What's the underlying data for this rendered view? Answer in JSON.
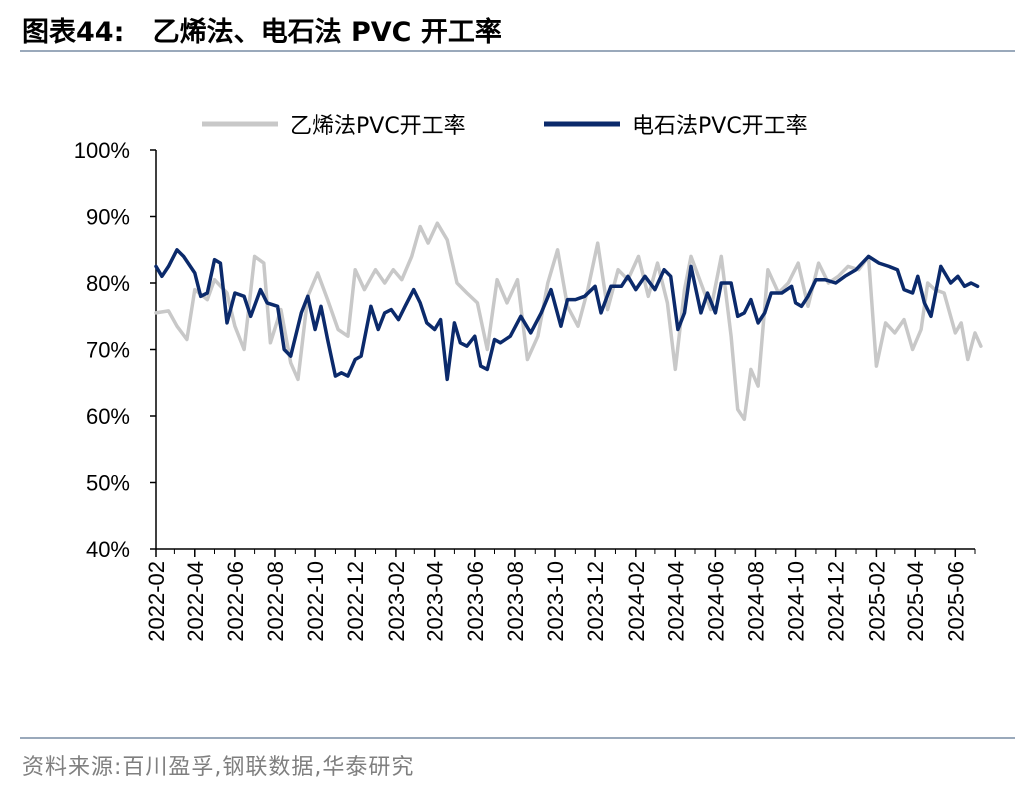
{
  "header": {
    "title": "图表44:   乙烯法、电石法 PVC 开工率"
  },
  "footer": {
    "source": "资料来源:百川盈孚,钢联数据,华泰研究"
  },
  "colors": {
    "ethylene": "#c8c8c8",
    "carbide": "#0b2a6b",
    "rule": "#9aa9bb"
  },
  "chart_data": {
    "type": "line",
    "title": "",
    "xlabel": "",
    "ylabel": "",
    "ylim": [
      40,
      100
    ],
    "y_ticks": [
      "40%",
      "50%",
      "60%",
      "70%",
      "80%",
      "90%",
      "100%"
    ],
    "x_range": [
      "2022-02",
      "2025-07"
    ],
    "x_ticks": [
      "2022-02",
      "2022-04",
      "2022-06",
      "2022-08",
      "2022-10",
      "2022-12",
      "2023-02",
      "2023-04",
      "2023-06",
      "2023-08",
      "2023-10",
      "2023-12",
      "2024-02",
      "2024-04",
      "2024-06",
      "2024-08",
      "2024-10",
      "2024-12",
      "2025-02",
      "2025-04",
      "2025-06"
    ],
    "legend": "top",
    "grid": false,
    "series": [
      {
        "name": "乙烯法PVC开工率",
        "color": "#c8c8c8",
        "points": [
          [
            "2022-02-01",
            75.5
          ],
          [
            "2022-02-20",
            75.8
          ],
          [
            "2022-03-05",
            73.5
          ],
          [
            "2022-03-20",
            71.5
          ],
          [
            "2022-04-01",
            79.0
          ],
          [
            "2022-04-20",
            77.5
          ],
          [
            "2022-05-01",
            80.5
          ],
          [
            "2022-05-20",
            78.5
          ],
          [
            "2022-06-01",
            73.5
          ],
          [
            "2022-06-15",
            70.0
          ],
          [
            "2022-07-01",
            84.0
          ],
          [
            "2022-07-15",
            83.0
          ],
          [
            "2022-07-25",
            71.0
          ],
          [
            "2022-08-10",
            76.0
          ],
          [
            "2022-08-25",
            68.0
          ],
          [
            "2022-09-05",
            65.5
          ],
          [
            "2022-09-20",
            78.0
          ],
          [
            "2022-10-05",
            81.5
          ],
          [
            "2022-10-20",
            77.5
          ],
          [
            "2022-11-05",
            73.0
          ],
          [
            "2022-11-20",
            72.0
          ],
          [
            "2022-12-01",
            82.0
          ],
          [
            "2022-12-15",
            79.0
          ],
          [
            "2023-01-01",
            82.0
          ],
          [
            "2023-01-15",
            80.0
          ],
          [
            "2023-01-28",
            82.0
          ],
          [
            "2023-02-10",
            80.5
          ],
          [
            "2023-02-25",
            84.0
          ],
          [
            "2023-03-10",
            88.5
          ],
          [
            "2023-03-22",
            86.0
          ],
          [
            "2023-04-05",
            89.0
          ],
          [
            "2023-04-20",
            86.5
          ],
          [
            "2023-05-05",
            80.0
          ],
          [
            "2023-05-20",
            78.5
          ],
          [
            "2023-06-05",
            77.0
          ],
          [
            "2023-06-20",
            70.0
          ],
          [
            "2023-07-05",
            80.5
          ],
          [
            "2023-07-20",
            77.0
          ],
          [
            "2023-08-05",
            80.5
          ],
          [
            "2023-08-20",
            68.5
          ],
          [
            "2023-09-05",
            72.0
          ],
          [
            "2023-09-20",
            80.0
          ],
          [
            "2023-10-05",
            85.0
          ],
          [
            "2023-10-20",
            76.5
          ],
          [
            "2023-11-05",
            73.5
          ],
          [
            "2023-11-20",
            79.0
          ],
          [
            "2023-12-05",
            86.0
          ],
          [
            "2023-12-20",
            76.0
          ],
          [
            "2024-01-05",
            82.0
          ],
          [
            "2024-01-20",
            80.5
          ],
          [
            "2024-02-05",
            84.0
          ],
          [
            "2024-02-20",
            78.0
          ],
          [
            "2024-03-05",
            83.0
          ],
          [
            "2024-03-20",
            77.0
          ],
          [
            "2024-04-01",
            67.0
          ],
          [
            "2024-04-15",
            79.0
          ],
          [
            "2024-04-25",
            84.0
          ],
          [
            "2024-05-10",
            80.0
          ],
          [
            "2024-05-25",
            76.0
          ],
          [
            "2024-06-10",
            84.0
          ],
          [
            "2024-06-25",
            72.0
          ],
          [
            "2024-07-05",
            61.0
          ],
          [
            "2024-07-15",
            59.5
          ],
          [
            "2024-07-25",
            67.0
          ],
          [
            "2024-08-05",
            64.5
          ],
          [
            "2024-08-20",
            82.0
          ],
          [
            "2024-09-05",
            78.5
          ],
          [
            "2024-09-20",
            80.0
          ],
          [
            "2024-10-05",
            83.0
          ],
          [
            "2024-10-20",
            76.5
          ],
          [
            "2024-11-05",
            83.0
          ],
          [
            "2024-11-20",
            80.0
          ],
          [
            "2024-12-05",
            81.0
          ],
          [
            "2024-12-20",
            82.5
          ],
          [
            "2025-01-05",
            82.0
          ],
          [
            "2025-01-20",
            84.0
          ],
          [
            "2025-02-01",
            67.5
          ],
          [
            "2025-02-15",
            74.0
          ],
          [
            "2025-03-01",
            72.5
          ],
          [
            "2025-03-15",
            74.5
          ],
          [
            "2025-03-28",
            70.0
          ],
          [
            "2025-04-10",
            73.0
          ],
          [
            "2025-04-20",
            80.0
          ],
          [
            "2025-05-01",
            79.0
          ],
          [
            "2025-05-15",
            78.5
          ],
          [
            "2025-06-01",
            72.5
          ],
          [
            "2025-06-10",
            74.0
          ],
          [
            "2025-06-20",
            68.5
          ],
          [
            "2025-07-01",
            72.5
          ],
          [
            "2025-07-10",
            70.5
          ]
        ]
      },
      {
        "name": "电石法PVC开工率",
        "color": "#0b2a6b",
        "points": [
          [
            "2022-02-01",
            82.5
          ],
          [
            "2022-02-10",
            81.0
          ],
          [
            "2022-02-20",
            82.5
          ],
          [
            "2022-03-05",
            85.0
          ],
          [
            "2022-03-15",
            84.0
          ],
          [
            "2022-04-01",
            81.5
          ],
          [
            "2022-04-10",
            78.0
          ],
          [
            "2022-04-20",
            78.5
          ],
          [
            "2022-05-01",
            83.5
          ],
          [
            "2022-05-10",
            83.0
          ],
          [
            "2022-05-20",
            74.0
          ],
          [
            "2022-06-01",
            78.5
          ],
          [
            "2022-06-15",
            78.0
          ],
          [
            "2022-06-25",
            75.0
          ],
          [
            "2022-07-10",
            79.0
          ],
          [
            "2022-07-20",
            77.0
          ],
          [
            "2022-08-05",
            76.5
          ],
          [
            "2022-08-15",
            70.0
          ],
          [
            "2022-08-25",
            69.0
          ],
          [
            "2022-09-10",
            75.5
          ],
          [
            "2022-09-20",
            78.0
          ],
          [
            "2022-10-01",
            73.0
          ],
          [
            "2022-10-10",
            76.5
          ],
          [
            "2022-10-20",
            71.5
          ],
          [
            "2022-11-01",
            66.0
          ],
          [
            "2022-11-10",
            66.5
          ],
          [
            "2022-11-20",
            66.0
          ],
          [
            "2022-12-01",
            68.5
          ],
          [
            "2022-12-10",
            69.0
          ],
          [
            "2022-12-25",
            76.5
          ],
          [
            "2023-01-05",
            73.0
          ],
          [
            "2023-01-15",
            75.5
          ],
          [
            "2023-01-25",
            76.0
          ],
          [
            "2023-02-05",
            74.5
          ],
          [
            "2023-02-15",
            76.5
          ],
          [
            "2023-02-28",
            79.0
          ],
          [
            "2023-03-10",
            77.0
          ],
          [
            "2023-03-20",
            74.0
          ],
          [
            "2023-04-01",
            73.0
          ],
          [
            "2023-04-10",
            74.5
          ],
          [
            "2023-04-20",
            65.5
          ],
          [
            "2023-05-01",
            74.0
          ],
          [
            "2023-05-10",
            71.0
          ],
          [
            "2023-05-20",
            70.5
          ],
          [
            "2023-06-01",
            72.0
          ],
          [
            "2023-06-10",
            67.5
          ],
          [
            "2023-06-20",
            67.0
          ],
          [
            "2023-07-01",
            71.5
          ],
          [
            "2023-07-10",
            71.0
          ],
          [
            "2023-07-25",
            72.0
          ],
          [
            "2023-08-10",
            75.0
          ],
          [
            "2023-08-25",
            72.5
          ],
          [
            "2023-09-10",
            75.5
          ],
          [
            "2023-09-25",
            79.0
          ],
          [
            "2023-10-10",
            73.5
          ],
          [
            "2023-10-20",
            77.5
          ],
          [
            "2023-11-01",
            77.5
          ],
          [
            "2023-11-15",
            78.0
          ],
          [
            "2023-12-01",
            79.5
          ],
          [
            "2023-12-10",
            75.5
          ],
          [
            "2023-12-25",
            79.5
          ],
          [
            "2024-01-10",
            79.5
          ],
          [
            "2024-01-20",
            81.0
          ],
          [
            "2024-02-01",
            79.0
          ],
          [
            "2024-02-15",
            81.0
          ],
          [
            "2024-03-01",
            79.0
          ],
          [
            "2024-03-15",
            82.0
          ],
          [
            "2024-03-25",
            81.0
          ],
          [
            "2024-04-05",
            73.0
          ],
          [
            "2024-04-15",
            75.5
          ],
          [
            "2024-04-25",
            82.5
          ],
          [
            "2024-05-10",
            75.5
          ],
          [
            "2024-05-20",
            78.5
          ],
          [
            "2024-06-01",
            75.5
          ],
          [
            "2024-06-10",
            80.0
          ],
          [
            "2024-06-25",
            80.0
          ],
          [
            "2024-07-05",
            75.0
          ],
          [
            "2024-07-15",
            75.5
          ],
          [
            "2024-07-25",
            77.5
          ],
          [
            "2024-08-05",
            74.0
          ],
          [
            "2024-08-15",
            75.5
          ],
          [
            "2024-08-25",
            78.5
          ],
          [
            "2024-09-10",
            78.5
          ],
          [
            "2024-09-25",
            79.5
          ],
          [
            "2024-10-01",
            77.0
          ],
          [
            "2024-10-10",
            76.5
          ],
          [
            "2024-10-20",
            78.0
          ],
          [
            "2024-11-01",
            80.5
          ],
          [
            "2024-11-15",
            80.5
          ],
          [
            "2024-12-01",
            80.0
          ],
          [
            "2024-12-15",
            81.0
          ],
          [
            "2025-01-01",
            82.0
          ],
          [
            "2025-01-20",
            84.0
          ],
          [
            "2025-02-05",
            83.0
          ],
          [
            "2025-02-20",
            82.5
          ],
          [
            "2025-03-05",
            82.0
          ],
          [
            "2025-03-15",
            79.0
          ],
          [
            "2025-03-28",
            78.5
          ],
          [
            "2025-04-05",
            81.0
          ],
          [
            "2025-04-15",
            77.0
          ],
          [
            "2025-04-25",
            75.0
          ],
          [
            "2025-05-10",
            82.5
          ],
          [
            "2025-05-25",
            80.0
          ],
          [
            "2025-06-05",
            81.0
          ],
          [
            "2025-06-15",
            79.5
          ],
          [
            "2025-06-25",
            80.0
          ],
          [
            "2025-07-05",
            79.5
          ]
        ]
      }
    ]
  }
}
